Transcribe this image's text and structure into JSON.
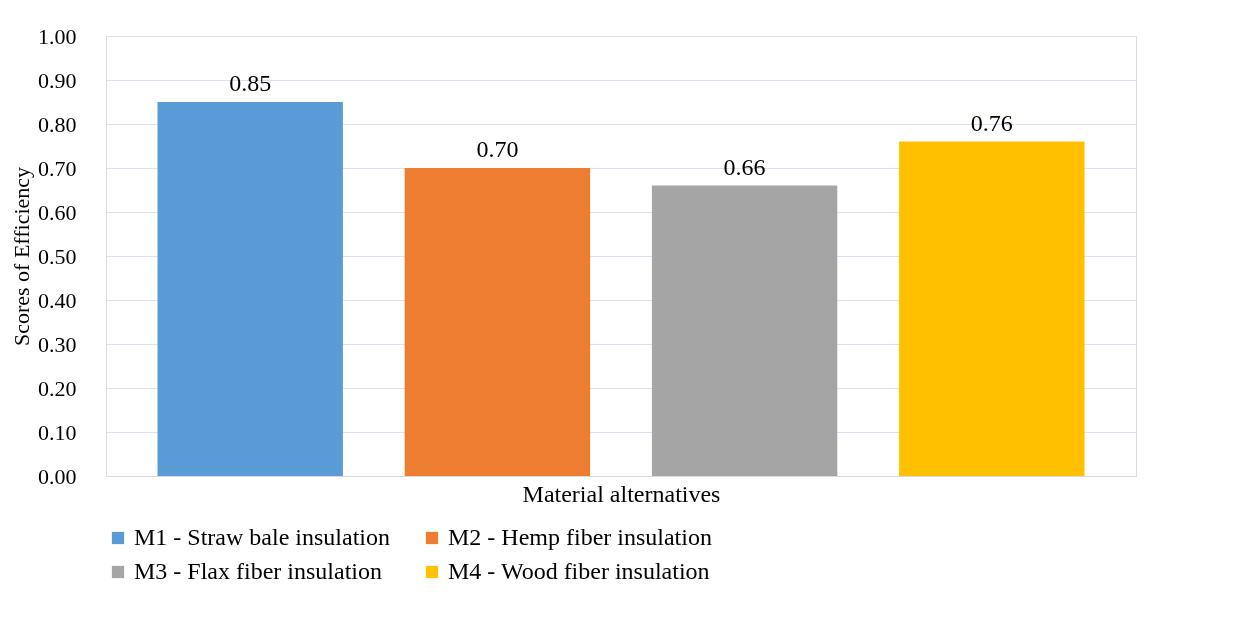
{
  "chart_data": {
    "type": "bar",
    "xlabel": "Material alternatives",
    "ylabel": "Scores of Efficiency",
    "categories": [
      null
    ],
    "series": [
      {
        "name": "M1 - Straw bale insulation",
        "color": "#5b9bd5",
        "values": [
          0.85
        ],
        "value_labels": [
          "0.85"
        ]
      },
      {
        "name": "M2 - Hemp fiber insulation",
        "color": "#ed7d31",
        "values": [
          0.7
        ],
        "value_labels": [
          "0.70"
        ]
      },
      {
        "name": "M3 - Flax fiber insulation",
        "color": "#a5a5a5",
        "values": [
          0.66
        ],
        "value_labels": [
          "0.66"
        ]
      },
      {
        "name": "M4 - Wood fiber insulation",
        "color": "#ffc000",
        "values": [
          0.76
        ],
        "value_labels": [
          "0.76"
        ]
      }
    ],
    "ylim": [
      0,
      1
    ],
    "yticks": [
      {
        "value": 0,
        "label": "0.00"
      },
      {
        "value": 0.1,
        "label": "0.10"
      },
      {
        "value": 0.2,
        "label": "0.20"
      },
      {
        "value": 0.3,
        "label": "0.30"
      },
      {
        "value": 0.4,
        "label": "0.40"
      },
      {
        "value": 0.5,
        "label": "0.50"
      },
      {
        "value": 0.6,
        "label": "0.60"
      },
      {
        "value": 0.7,
        "label": "0.70"
      },
      {
        "value": 0.8,
        "label": "0.80"
      },
      {
        "value": 0.9,
        "label": "0.90"
      },
      {
        "value": 1.0,
        "label": "1.00"
      }
    ],
    "grid": "y",
    "legend": "bottom"
  }
}
